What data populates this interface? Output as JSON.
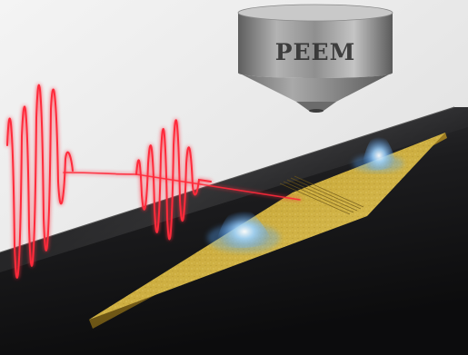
{
  "scene": {
    "peem_label": "PEEM",
    "colors": {
      "background": "#e9e9e9",
      "substrate": "#1d1d1f",
      "gold": "#c9a93a",
      "pulse": "#ff2a3a",
      "emission": "#7fc4ff",
      "metal": "#8f8f8f"
    }
  }
}
